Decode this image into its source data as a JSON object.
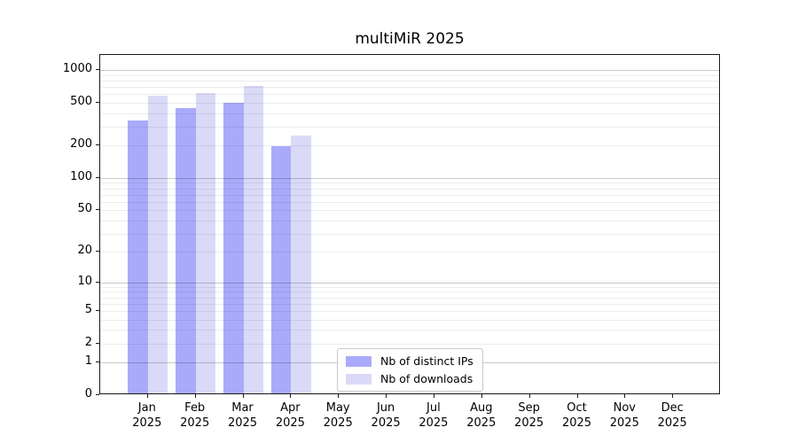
{
  "title": "multiMiR 2025",
  "chart_data": {
    "type": "bar",
    "title": "multiMiR 2025",
    "xlabel": "",
    "ylabel": "",
    "scale": "log10(1+y)",
    "grid": "horizontal major+minor, drawn over bars",
    "legend_position": "inside plot, lower middle",
    "categories": [
      "Jan 2025",
      "Feb 2025",
      "Mar 2025",
      "Apr 2025",
      "May 2025",
      "Jun 2025",
      "Jul 2025",
      "Aug 2025",
      "Sep 2025",
      "Oct 2025",
      "Nov 2025",
      "Dec 2025"
    ],
    "yticks": [
      0,
      1,
      2,
      5,
      10,
      20,
      50,
      100,
      200,
      500,
      1000
    ],
    "ylim": [
      0,
      1380
    ],
    "series": [
      {
        "name": "Nb of distinct IPs",
        "color": "#aaaafa",
        "values": [
          330,
          430,
          475,
          190,
          null,
          null,
          null,
          null,
          null,
          null,
          null,
          null
        ]
      },
      {
        "name": "Nb of downloads",
        "color": "#dadaf8",
        "values": [
          555,
          585,
          690,
          240,
          null,
          null,
          null,
          null,
          null,
          null,
          null,
          null
        ]
      }
    ]
  }
}
